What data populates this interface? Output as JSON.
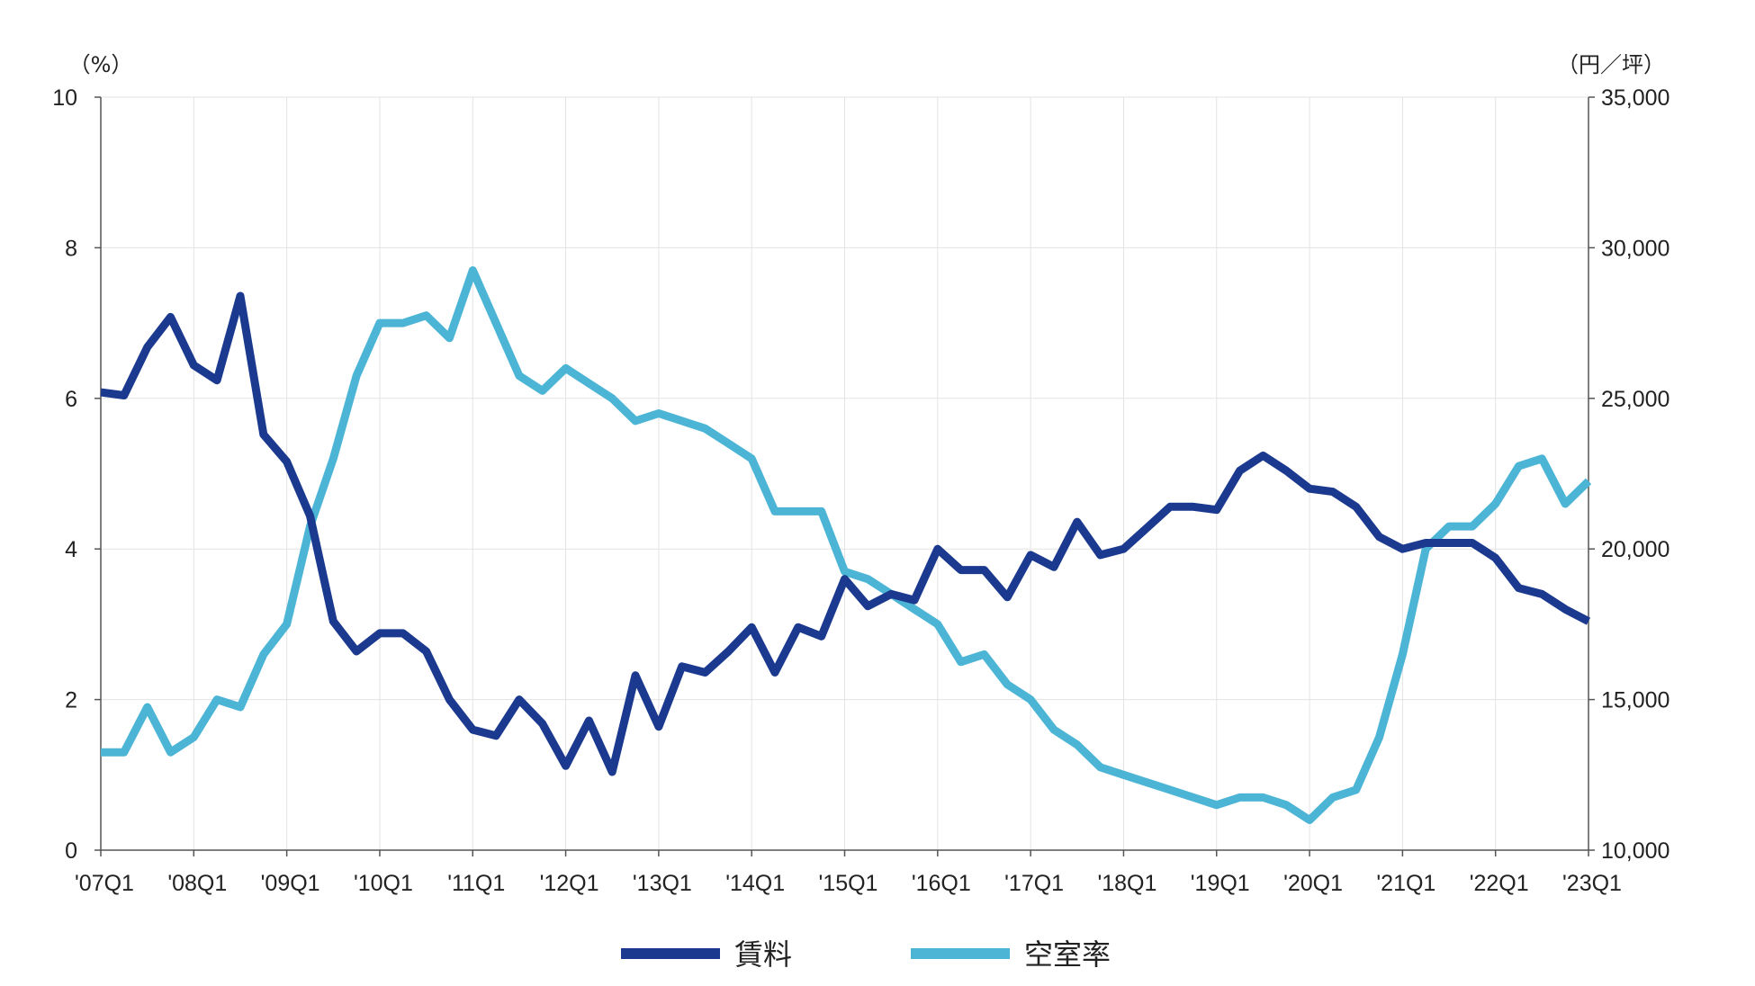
{
  "chart_data": {
    "type": "line",
    "title": "",
    "xlabel": "",
    "left_axis": {
      "unit": "（%）",
      "ylim": [
        0,
        10
      ],
      "ticks": [
        0,
        2,
        4,
        6,
        8,
        10
      ],
      "tick_labels": [
        "0",
        "2",
        "4",
        "6",
        "8",
        "10"
      ]
    },
    "right_axis": {
      "unit": "（円／坪）",
      "ylim": [
        10000,
        35000
      ],
      "ticks": [
        10000,
        15000,
        20000,
        25000,
        30000,
        35000
      ],
      "tick_labels": [
        "10,000",
        "15,000",
        "20,000",
        "25,000",
        "30,000",
        "35,000"
      ]
    },
    "x_tick_labels": [
      "'07Q1",
      "'08Q1",
      "'09Q1",
      "'10Q1",
      "'11Q1",
      "'12Q1",
      "'13Q1",
      "'14Q1",
      "'15Q1",
      "'16Q1",
      "'17Q1",
      "'18Q1",
      "'19Q1",
      "'20Q1",
      "'21Q1",
      "'22Q1",
      "'23Q1"
    ],
    "num_quarters": 65,
    "grid": true,
    "legend_position": "bottom",
    "series": [
      {
        "name": "賃料",
        "axis": "right",
        "color": "#1b3a8f",
        "values": [
          25200,
          25100,
          26700,
          27700,
          26100,
          25600,
          28400,
          23800,
          22900,
          21100,
          17600,
          16600,
          17200,
          17200,
          16600,
          15000,
          14000,
          13800,
          15000,
          14200,
          12800,
          14300,
          12600,
          15800,
          14100,
          16100,
          15900,
          16600,
          17400,
          15900,
          17400,
          17100,
          19000,
          18100,
          18500,
          18300,
          20000,
          19300,
          19300,
          18400,
          19800,
          19400,
          20900,
          19800,
          20000,
          20700,
          21400,
          21400,
          21300,
          22600,
          23100,
          22600,
          22000,
          21900,
          21400,
          20400,
          20000,
          20200,
          20200,
          20200,
          19700,
          18700,
          18500,
          18000,
          17600
        ]
      },
      {
        "name": "空室率",
        "axis": "left",
        "color": "#4cb5d6",
        "values": [
          1.3,
          1.3,
          1.9,
          1.3,
          1.5,
          2.0,
          1.9,
          2.6,
          3.0,
          4.3,
          5.2,
          6.3,
          7.0,
          7.0,
          7.1,
          6.8,
          7.7,
          7.0,
          6.3,
          6.1,
          6.4,
          6.2,
          6.0,
          5.7,
          5.8,
          5.7,
          5.6,
          5.4,
          5.2,
          4.5,
          4.5,
          4.5,
          3.7,
          3.6,
          3.4,
          3.2,
          3.0,
          2.5,
          2.6,
          2.2,
          2.0,
          1.6,
          1.4,
          1.1,
          1.0,
          0.9,
          0.8,
          0.7,
          0.6,
          0.7,
          0.7,
          0.6,
          0.4,
          0.7,
          0.8,
          1.5,
          2.6,
          4.0,
          4.3,
          4.3,
          4.6,
          5.1,
          5.2,
          4.6,
          4.9
        ]
      }
    ]
  }
}
